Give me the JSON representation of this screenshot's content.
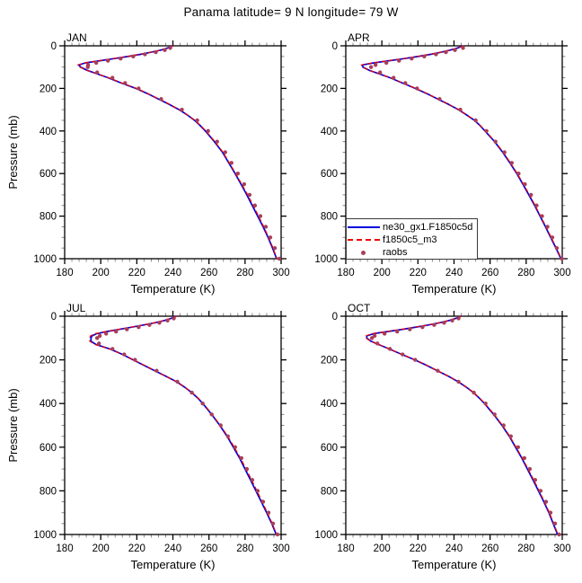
{
  "title": "Panama  latitude= 9 N longitude= 79 W",
  "colors": {
    "model1_line": "#0000dd",
    "model2_line": "#ee0000",
    "raobs_dot": "#a93f58",
    "axis": "#000000",
    "minor_tick": "#8a8a8a",
    "background": "#ffffff"
  },
  "legend": {
    "items": [
      {
        "label": "ne30_gx1.F1850c5d",
        "style": "line-solid",
        "color": "#0000dd"
      },
      {
        "label": "f1850c5_m3",
        "style": "line-dashed",
        "color": "#ee0000"
      },
      {
        "label": "raobs",
        "style": "dot",
        "color": "#a93f58"
      }
    ]
  },
  "chart_data": {
    "type": "line",
    "title": "Panama  latitude= 9 N longitude= 79 W",
    "xlabel": "Temperature (K)",
    "ylabel": "Pressure (mb)",
    "xlim": [
      180,
      300
    ],
    "ylim": [
      0,
      1000
    ],
    "y_inverted": true,
    "grid": false,
    "xticks_major": [
      180,
      200,
      220,
      240,
      260,
      280,
      300
    ],
    "xtick_minor_step": 4,
    "yticks_major": [
      0,
      200,
      400,
      600,
      800,
      1000
    ],
    "ytick_minor_step": 50,
    "legend_position": "lower-left of APR panel",
    "model_pressure": [
      0,
      10,
      20,
      30,
      40,
      50,
      60,
      70,
      80,
      90,
      100,
      115,
      130,
      150,
      175,
      200,
      225,
      250,
      275,
      300,
      325,
      350,
      375,
      400,
      450,
      500,
      550,
      600,
      650,
      700,
      750,
      800,
      850,
      900,
      950,
      1000
    ],
    "raobs_pressure": [
      10,
      20,
      30,
      40,
      50,
      60,
      70,
      80,
      90,
      100,
      125,
      150,
      175,
      200,
      250,
      300,
      350,
      400,
      450,
      500,
      550,
      600,
      650,
      700,
      750,
      800,
      850,
      900,
      950,
      1000
    ],
    "panels": [
      {
        "label": "JAN",
        "series": [
          {
            "name": "ne30_gx1.F1850c5d",
            "temps": [
              240,
              237,
              233.5,
              228,
              222,
              215,
              207.5,
              199.5,
              191.5,
              187.8,
              188.8,
              192.5,
              197.5,
              204,
              211.5,
              219.5,
              226,
              232,
              238,
              243.5,
              248,
              252,
              255.2,
              258,
              263,
              267.5,
              271,
              274.5,
              277.8,
              281,
              284,
              287,
              290,
              292.8,
              295.2,
              297.5
            ]
          },
          {
            "name": "f1850c5_m3",
            "temps": [
              240.2,
              237.1,
              233.4,
              227.8,
              221.6,
              214.4,
              206.8,
              198.8,
              191,
              187.2,
              188.4,
              192.3,
              197.6,
              204.3,
              211.8,
              219.8,
              226.3,
              232.3,
              238.2,
              243.6,
              248.1,
              252.2,
              255.4,
              258.3,
              263.3,
              267.8,
              271.3,
              274.8,
              278.2,
              281.5,
              284.5,
              287.5,
              290.4,
              293.1,
              295.5,
              297.7
            ]
          },
          {
            "name": "raobs",
            "temps": [
              238.5,
              235.5,
              230.5,
              224.5,
              218,
              211,
              204,
              197.5,
              193,
              192.8,
              198,
              206.5,
              213.5,
              221,
              233.5,
              245,
              253.5,
              259.5,
              264.5,
              269,
              272.5,
              276,
              279.5,
              282.5,
              285.5,
              288.5,
              291.5,
              294,
              296.5,
              299
            ]
          }
        ]
      },
      {
        "label": "APR",
        "series": [
          {
            "name": "ne30_gx1.F1850c5d",
            "temps": [
              245,
              242,
              238,
              233,
              227,
              220,
              212.5,
              204,
              195.5,
              189.2,
              189.5,
              193,
              198,
              204.5,
              211.5,
              218.5,
              225,
              231,
              237,
              242.5,
              247,
              251.3,
              254.5,
              257.2,
              262.5,
              267,
              271,
              274.8,
              278.2,
              281.5,
              284.7,
              287.7,
              290.7,
              293.6,
              296.5,
              299.3
            ]
          },
          {
            "name": "f1850c5_m3",
            "temps": [
              245.2,
              242,
              237.8,
              232.8,
              226.6,
              219.5,
              212,
              203.4,
              194.8,
              188.6,
              189.2,
              192.9,
              198.1,
              204.7,
              211.8,
              218.8,
              225.2,
              231.2,
              237.1,
              242.6,
              247.1,
              251.5,
              254.7,
              257.5,
              262.8,
              267.3,
              271.3,
              275.1,
              278.5,
              281.9,
              285,
              288,
              291,
              293.9,
              296.8,
              299.5
            ]
          },
          {
            "name": "raobs",
            "temps": [
              245,
              240.5,
              235.5,
              230,
              223.5,
              216.5,
              209.5,
              202.5,
              196.5,
              194,
              199,
              206.5,
              213,
              219.5,
              232,
              243.5,
              252,
              258,
              263,
              268,
              272,
              275.8,
              279.3,
              282.7,
              285.8,
              288.8,
              291.8,
              294.5,
              297,
              299.8
            ]
          }
        ]
      },
      {
        "label": "JUL",
        "series": [
          {
            "name": "ne30_gx1.F1850c5d",
            "temps": [
              242,
              239,
              235,
              230,
              224,
              217.5,
              210.5,
              203.5,
              197.8,
              195.2,
              194.6,
              194.6,
              197.5,
              205,
              212,
              218,
              224,
              230,
              236,
              242,
              246.5,
              250.5,
              253.8,
              256.6,
              261.5,
              266,
              270,
              273.5,
              277,
              280,
              283,
              286,
              289,
              292,
              294.8,
              297.3
            ]
          },
          {
            "name": "f1850c5_m3",
            "temps": [
              242.2,
              239,
              234.8,
              229.8,
              223.6,
              217,
              210,
              203,
              197,
              194.3,
              193.8,
              193.9,
              197,
              204.8,
              211.9,
              218.1,
              224.2,
              230.2,
              236.1,
              242.1,
              246.6,
              250.7,
              254,
              256.9,
              261.8,
              266.3,
              270.4,
              274,
              277.5,
              280.6,
              283.6,
              286.6,
              289.5,
              292.4,
              295.1,
              297.5
            ]
          },
          {
            "name": "raobs",
            "temps": [
              240.5,
              237,
              232.5,
              227,
              221,
              214.5,
              208.5,
              203,
              199.5,
              198,
              199,
              206.5,
              213,
              219,
              231,
              242.5,
              250.5,
              256.5,
              261.5,
              266.5,
              270.5,
              274.5,
              278,
              281,
              284,
              287,
              290,
              293,
              295.5,
              298
            ]
          }
        ]
      },
      {
        "label": "OCT",
        "series": [
          {
            "name": "ne30_gx1.F1850c5d",
            "temps": [
              244,
              241,
              237,
              232,
              226,
              219,
              211.5,
              203.5,
              195.5,
              191.6,
              191.6,
              194,
              198.3,
              204,
              211,
              218.3,
              224.8,
              230.8,
              236.8,
              242.3,
              246.8,
              250.8,
              254,
              256.9,
              262,
              266.6,
              270.6,
              274.1,
              277.6,
              280.7,
              283.8,
              286.8,
              289.8,
              292.6,
              295,
              297.4
            ]
          },
          {
            "name": "f1850c5_m3",
            "temps": [
              244.2,
              241,
              236.8,
              231.8,
              225.6,
              218.4,
              210.9,
              202.9,
              194.9,
              191,
              191.2,
              193.8,
              198.4,
              204.2,
              211.2,
              218.5,
              225,
              231,
              237,
              242.4,
              246.9,
              251,
              254.2,
              257.2,
              262.3,
              266.9,
              270.9,
              274.4,
              277.9,
              281.1,
              284.2,
              287.2,
              290.1,
              292.9,
              295.3,
              297.6
            ]
          },
          {
            "name": "raobs",
            "temps": [
              242.5,
              239,
              234.5,
              229,
              222.5,
              215.5,
              208.5,
              201.5,
              196,
              194.5,
              197.5,
              204.5,
              211.5,
              218.5,
              231,
              242.5,
              251,
              257.5,
              262.5,
              267.5,
              271.5,
              275.5,
              279,
              282,
              285,
              288,
              291,
              293.5,
              296,
              298.3
            ]
          }
        ]
      }
    ]
  }
}
